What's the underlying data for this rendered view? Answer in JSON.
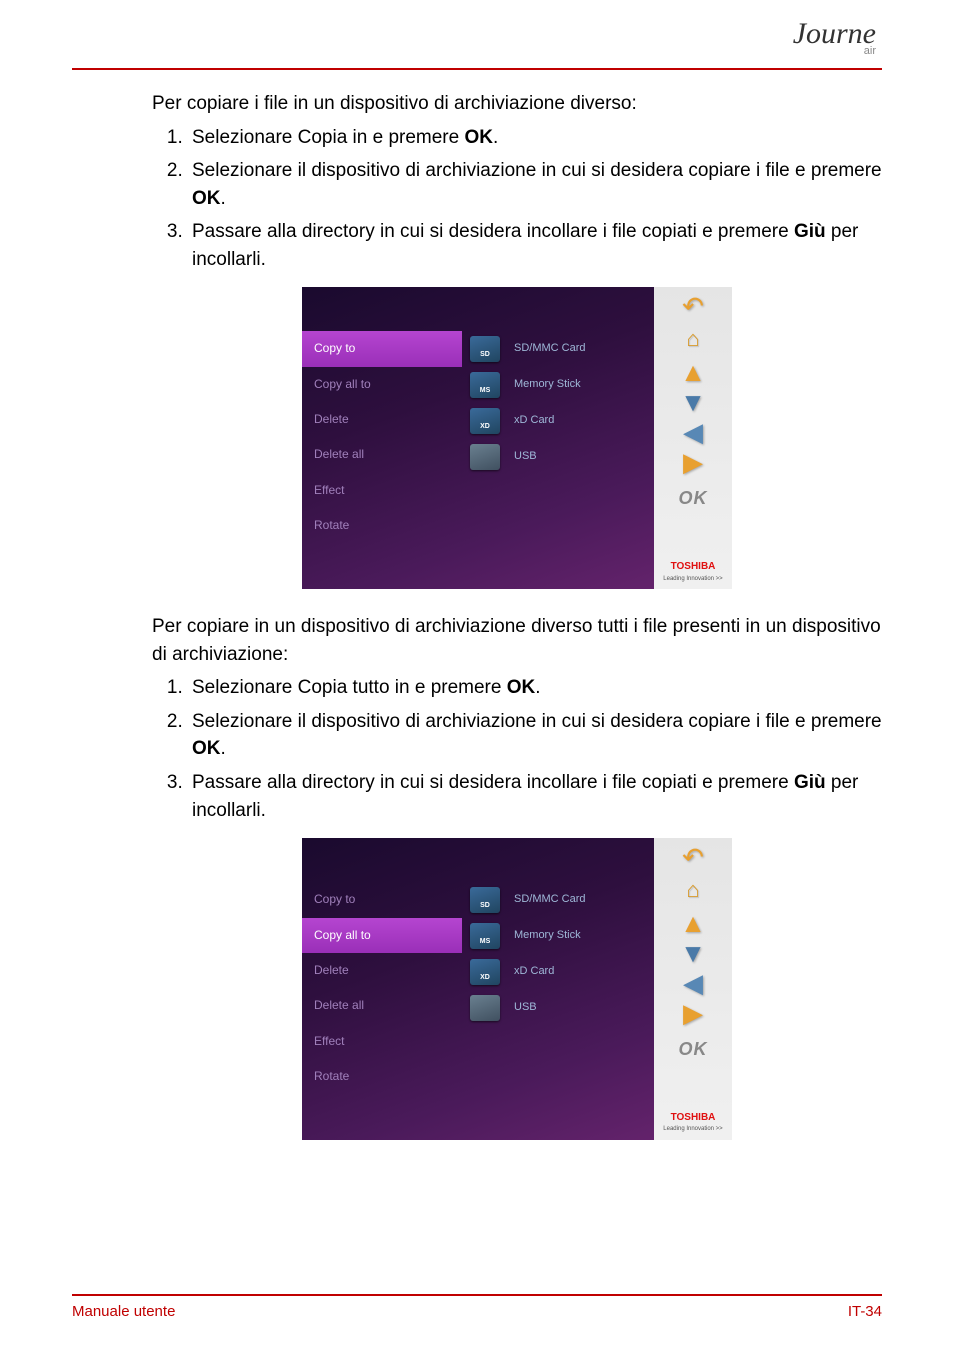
{
  "logo": {
    "main": "Journe",
    "sub": "air"
  },
  "section1": {
    "intro": "Per copiare i file in un dispositivo di archiviazione diverso:",
    "steps": [
      {
        "pre": "Selezionare Copia in e premere ",
        "bold": "OK",
        "post": "."
      },
      {
        "pre": "Selezionare il dispositivo di archiviazione in cui si desidera copiare i file e premere ",
        "bold": "OK",
        "post": "."
      },
      {
        "pre": "Passare alla directory in cui si desidera incollare i file copiati e premere ",
        "bold": "Giù",
        "post": " per incollarli."
      }
    ]
  },
  "section2": {
    "intro": "Per copiare in un dispositivo di archiviazione diverso tutti i file presenti in un dispositivo di archiviazione:",
    "steps": [
      {
        "pre": "Selezionare Copia tutto in e premere ",
        "bold": "OK",
        "post": "."
      },
      {
        "pre": "Selezionare il dispositivo di archiviazione in cui si desidera copiare i file e premere ",
        "bold": "OK",
        "post": "."
      },
      {
        "pre": "Passare alla directory in cui si desidera incollare i file copiati e premere ",
        "bold": "Giù",
        "post": " per incollarli."
      }
    ]
  },
  "screenshot1": {
    "selected_index": 0,
    "menu": [
      "Copy to",
      "Copy all to",
      "Delete",
      "Delete all",
      "Effect",
      "Rotate"
    ],
    "devices": [
      {
        "tag": "SD",
        "label": "SD/MMC Card",
        "kind": "card"
      },
      {
        "tag": "MS",
        "label": "Memory Stick",
        "kind": "card"
      },
      {
        "tag": "XD",
        "label": "xD Card",
        "kind": "card"
      },
      {
        "tag": "",
        "label": "USB",
        "kind": "usb"
      }
    ],
    "ok_label": "OK",
    "brand": "TOSHIBA",
    "brand_tag": "Leading Innovation >>"
  },
  "screenshot2": {
    "selected_index": 1,
    "menu": [
      "Copy to",
      "Copy all to",
      "Delete",
      "Delete all",
      "Effect",
      "Rotate"
    ],
    "devices": [
      {
        "tag": "SD",
        "label": "SD/MMC Card",
        "kind": "card"
      },
      {
        "tag": "MS",
        "label": "Memory Stick",
        "kind": "card"
      },
      {
        "tag": "XD",
        "label": "xD Card",
        "kind": "card"
      },
      {
        "tag": "",
        "label": "USB",
        "kind": "usb"
      }
    ],
    "ok_label": "OK",
    "brand": "TOSHIBA",
    "brand_tag": "Leading Innovation >>"
  },
  "footer": {
    "left": "Manuale utente",
    "right": "IT-34"
  }
}
